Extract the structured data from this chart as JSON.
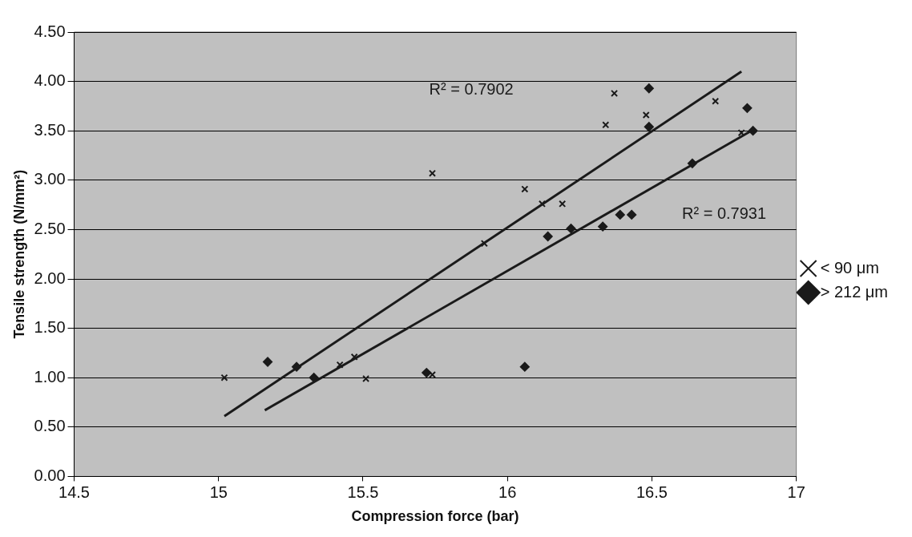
{
  "chart_data": {
    "type": "scatter",
    "xlabel": "Compression force (bar)",
    "ylabel": "Tensile strength (N/mm²)",
    "xlim": [
      14.5,
      17
    ],
    "xticks": [
      14.5,
      15,
      15.5,
      16,
      16.5,
      17
    ],
    "ylim": [
      0,
      4.5
    ],
    "yticks": [
      {
        "value": 0,
        "label": "0.00"
      },
      {
        "value": 0.5,
        "label": "0.50"
      },
      {
        "value": 1,
        "label": "1.00"
      },
      {
        "value": 1.5,
        "label": "1.50"
      },
      {
        "value": 2,
        "label": "2.00"
      },
      {
        "value": 2.5,
        "label": "2.50"
      },
      {
        "value": 3,
        "label": "3.00"
      },
      {
        "value": 3.5,
        "label": "3.50"
      },
      {
        "value": 4,
        "label": "4.00"
      },
      {
        "value": 4.5,
        "label": "4.50"
      }
    ],
    "grid": "y",
    "legend": "right",
    "series": [
      {
        "name": "< 90 μm",
        "color": "#1a1a1a",
        "marker": "cross",
        "x": [
          15.02,
          15.42,
          15.47,
          15.51,
          15.74,
          15.74,
          15.92,
          16.06,
          16.12,
          16.19,
          16.34,
          16.37,
          16.48,
          16.72,
          16.81
        ],
        "values": [
          1.0,
          1.13,
          1.21,
          0.99,
          1.03,
          3.07,
          2.36,
          2.91,
          2.76,
          2.76,
          3.56,
          3.88,
          3.66,
          3.8,
          3.48
        ]
      },
      {
        "name": "> 212 μm",
        "color": "#1a1a1a",
        "marker": "diamond",
        "x": [
          15.17,
          15.27,
          15.33,
          15.72,
          16.06,
          16.14,
          16.22,
          16.33,
          16.39,
          16.43,
          16.49,
          16.49,
          16.64,
          16.83,
          16.85
        ],
        "values": [
          1.16,
          1.11,
          1.0,
          1.05,
          1.11,
          2.43,
          2.51,
          2.53,
          2.65,
          2.65,
          3.93,
          3.54,
          3.17,
          3.73,
          3.5
        ]
      },
      {
        "type": "line",
        "color": "#1a1a1a",
        "marker": "none",
        "x": [
          15.02,
          16.81
        ],
        "values": [
          0.61,
          4.1
        ]
      },
      {
        "type": "line",
        "color": "#1a1a1a",
        "marker": "none",
        "x": [
          15.16,
          16.85
        ],
        "values": [
          0.67,
          3.51
        ]
      }
    ],
    "annotations": [
      "R² = 0.7902",
      "R² = 0.7931"
    ]
  }
}
